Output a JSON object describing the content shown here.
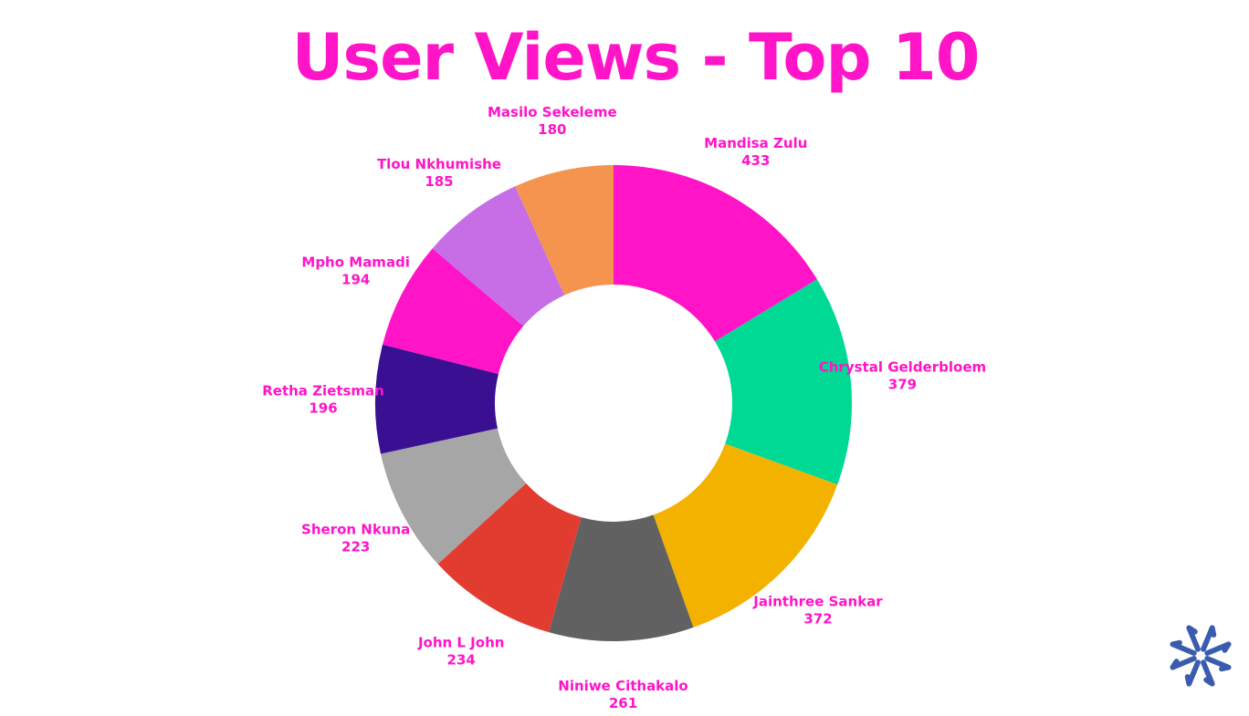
{
  "chart_data": {
    "type": "pie",
    "title": "User Views - Top 10",
    "donut": true,
    "slices": [
      {
        "label": "Mandisa Zulu",
        "value": 433,
        "color": "#ff14c8"
      },
      {
        "label": "Chrystal Gelderbloem",
        "value": 379,
        "color": "#00d994"
      },
      {
        "label": "Jainthree Sankar",
        "value": 372,
        "color": "#f3b200"
      },
      {
        "label": "Niniwe Cithakalo",
        "value": 261,
        "color": "#616161"
      },
      {
        "label": "John L John",
        "value": 234,
        "color": "#e23c30"
      },
      {
        "label": "Sheron Nkuna",
        "value": 223,
        "color": "#a6a6a6"
      },
      {
        "label": "Retha Zietsman",
        "value": 196,
        "color": "#3a0f92"
      },
      {
        "label": "Mpho Mamadi",
        "value": 194,
        "color": "#ff14c8"
      },
      {
        "label": "Tlou Nkhumishe",
        "value": 185,
        "color": "#c76ee6"
      },
      {
        "label": "Masilo Sekeleme",
        "value": 180,
        "color": "#f5944f"
      }
    ],
    "label_color": "#ff14c8",
    "start": "12 o'clock",
    "direction": "clockwise"
  },
  "logo": {
    "icon": "asterisk-logo-icon",
    "color": "#3b5cae"
  }
}
